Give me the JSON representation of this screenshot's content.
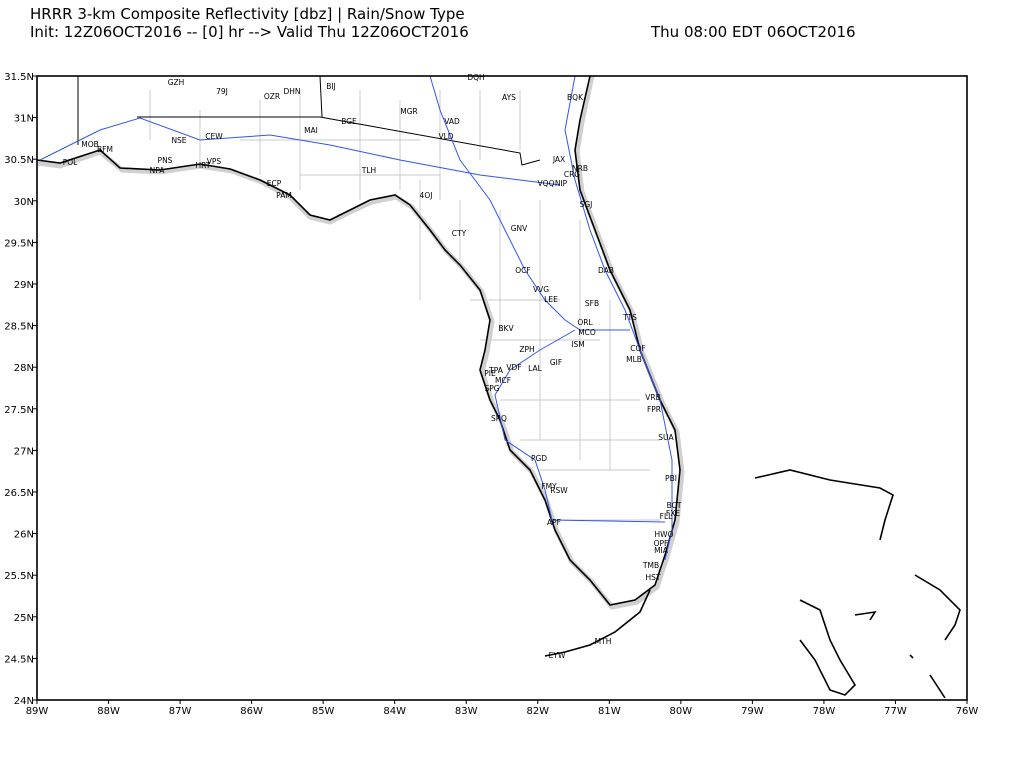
{
  "header": {
    "title": "HRRR 3-km Composite Reflectivity [dbz] | Rain/Snow Type",
    "init": "Init: 12Z06OCT2016 -- [0] hr --> Valid Thu 12Z06OCT2016",
    "valid_local": "Thu 08:00 EDT 06OCT2016"
  },
  "map": {
    "xlim": [
      -89,
      -76
    ],
    "ylim": [
      24,
      31.5
    ],
    "xticks": [
      {
        "value": -89,
        "label": "89W"
      },
      {
        "value": -88,
        "label": "88W"
      },
      {
        "value": -87,
        "label": "87W"
      },
      {
        "value": -86,
        "label": "86W"
      },
      {
        "value": -85,
        "label": "85W"
      },
      {
        "value": -84,
        "label": "84W"
      },
      {
        "value": -83,
        "label": "83W"
      },
      {
        "value": -82,
        "label": "82W"
      },
      {
        "value": -81,
        "label": "81W"
      },
      {
        "value": -80,
        "label": "80W"
      },
      {
        "value": -79,
        "label": "79W"
      },
      {
        "value": -78,
        "label": "78W"
      },
      {
        "value": -77,
        "label": "77W"
      },
      {
        "value": -76,
        "label": "76W"
      }
    ],
    "yticks": [
      {
        "value": 24,
        "label": "24N"
      },
      {
        "value": 24.5,
        "label": "24.5N"
      },
      {
        "value": 25,
        "label": "25N"
      },
      {
        "value": 25.5,
        "label": "25.5N"
      },
      {
        "value": 26,
        "label": "26N"
      },
      {
        "value": 26.5,
        "label": "26.5N"
      },
      {
        "value": 27,
        "label": "27N"
      },
      {
        "value": 27.5,
        "label": "27.5N"
      },
      {
        "value": 28,
        "label": "28N"
      },
      {
        "value": 28.5,
        "label": "28.5N"
      },
      {
        "value": 29,
        "label": "29N"
      },
      {
        "value": 29.5,
        "label": "29.5N"
      },
      {
        "value": 30,
        "label": "30N"
      },
      {
        "value": 30.5,
        "label": "30.5N"
      },
      {
        "value": 31,
        "label": "31N"
      },
      {
        "value": 31.5,
        "label": "31.5N"
      }
    ],
    "stations": [
      "GZH",
      "79J",
      "OZR",
      "DHN",
      "BIJ",
      "DQH",
      "AYS",
      "BQK",
      "MGR",
      "VAD",
      "BGE",
      "MAI",
      "VLD",
      "NSE",
      "CEW",
      "MOB",
      "BFM",
      "POL",
      "PNS",
      "NPA",
      "VPS",
      "HRT",
      "JAX",
      "NRB",
      "CRG",
      "VQQ",
      "NIP",
      "TLH",
      "ECP",
      "PAM",
      "4OJ",
      "SGJ",
      "CTY",
      "GNV",
      "OCF",
      "DAB",
      "VVG",
      "LEE",
      "SFB",
      "ORL",
      "MCO",
      "TTS",
      "BKV",
      "ISM",
      "ZPH",
      "COF",
      "MLB",
      "GIF",
      "LAL",
      "VDF",
      "TPA",
      "PIE",
      "MCF",
      "SPG",
      "VRB",
      "FPR",
      "SRQ",
      "SUA",
      "PGD",
      "FMY",
      "RSW",
      "PBI",
      "BCT",
      "FXE",
      "FLL",
      "APF",
      "HWO",
      "OPF",
      "MIA",
      "TMB",
      "HST",
      "MTH",
      "EYW"
    ]
  }
}
